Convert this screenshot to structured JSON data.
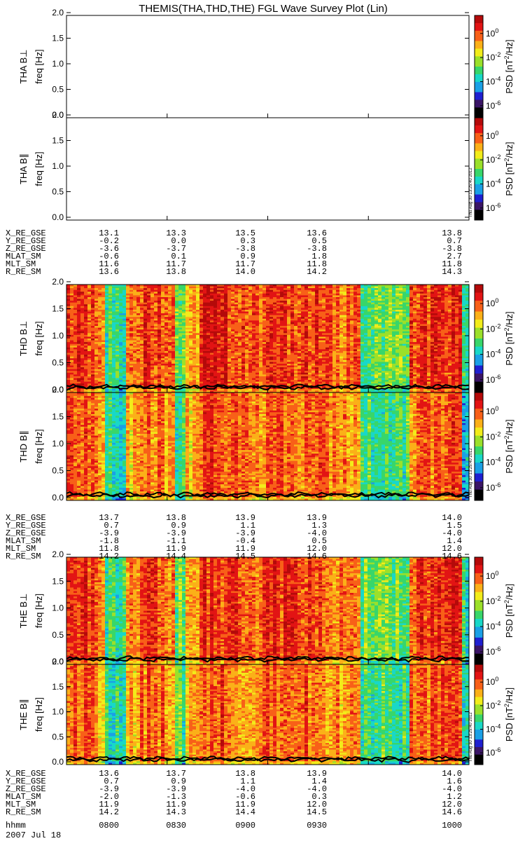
{
  "colors": {
    "background": "#ffffff",
    "axis": "#000000",
    "colormap": [
      "#000000",
      "#3a1466",
      "#1f1fd0",
      "#1aa0e6",
      "#18d8c8",
      "#38d66a",
      "#9be02a",
      "#f2ec1a",
      "#fbb018",
      "#f86018",
      "#e21414",
      "#b40a0a"
    ],
    "overlay_line": "#000000"
  },
  "stamp": "Thu Aug 30 13:25:40 2012",
  "chart_data": {
    "type": "heatmap",
    "title": "THEMIS(THA,THD,THE) FGL Wave Survey Plot (Lin)",
    "panels": [
      {
        "probe": "THA",
        "component": "B⊥",
        "ylabel": "THA B⊥",
        "ylabel2": "freq [Hz]",
        "ylim": [
          0,
          2.0
        ],
        "has_data": false
      },
      {
        "probe": "THA",
        "component": "B∥",
        "ylabel": "THA B∥",
        "ylabel2": "freq [Hz]",
        "ylim": [
          0,
          2.0
        ],
        "has_data": false
      },
      {
        "probe": "THD",
        "component": "B⊥",
        "ylabel": "THD B⊥",
        "ylabel2": "freq [Hz]",
        "ylim": [
          0,
          2.0
        ],
        "has_data": true
      },
      {
        "probe": "THD",
        "component": "B∥",
        "ylabel": "THD B∥",
        "ylabel2": "freq [Hz]",
        "ylim": [
          0,
          2.0
        ],
        "has_data": true
      },
      {
        "probe": "THE",
        "component": "B⊥",
        "ylabel": "THE B⊥",
        "ylabel2": "freq [Hz]",
        "ylim": [
          0,
          2.0
        ],
        "has_data": true
      },
      {
        "probe": "THE",
        "component": "B∥",
        "ylabel": "THE B∥",
        "ylabel2": "freq [Hz]",
        "ylim": [
          0,
          2.0
        ],
        "has_data": true
      }
    ],
    "yticks": [
      "0.0",
      "0.5",
      "1.0",
      "1.5",
      "2.0"
    ],
    "colorbar": {
      "label": "PSD [nT²/Hz]",
      "label_main": "PSD [nT",
      "label_sup": "2",
      "label_tail": "/Hz]",
      "range_log10": [
        -7,
        1.5
      ],
      "ticks": [
        {
          "base": "10",
          "exp": "0",
          "log": 0
        },
        {
          "base": "10",
          "exp": "-2",
          "log": -2
        },
        {
          "base": "10",
          "exp": "-4",
          "log": -4
        },
        {
          "base": "10",
          "exp": "-6",
          "log": -6
        }
      ]
    },
    "time": {
      "hhmm": [
        "0800",
        "0830",
        "0900",
        "0930",
        "1000"
      ],
      "date": "2007 Jul 18",
      "axis_label": "hhmm"
    },
    "ephemeris_labels": [
      "X_RE_GSE",
      "Y_RE_GSE",
      "Z_RE_GSE",
      "MLAT_SM",
      "MLT_SM",
      "R_RE_SM"
    ],
    "ephemeris": [
      {
        "probe": "THA",
        "rows": [
          [
            "13.1",
            "13.3",
            "13.5",
            "13.6",
            "13.8"
          ],
          [
            "-0.2",
            "0.0",
            "0.3",
            "0.5",
            "0.7"
          ],
          [
            "-3.6",
            "-3.7",
            "-3.8",
            "-3.8",
            "-3.8"
          ],
          [
            "-0.6",
            "0.1",
            "0.9",
            "1.8",
            "2.7"
          ],
          [
            "11.6",
            "11.7",
            "11.7",
            "11.8",
            "11.8"
          ],
          [
            "13.6",
            "13.8",
            "14.0",
            "14.2",
            "14.3"
          ]
        ]
      },
      {
        "probe": "THD",
        "rows": [
          [
            "13.7",
            "13.8",
            "13.9",
            "13.9",
            "14.0"
          ],
          [
            "0.7",
            "0.9",
            "1.1",
            "1.3",
            "1.5"
          ],
          [
            "-3.9",
            "-3.9",
            "-3.9",
            "-4.0",
            "-4.0"
          ],
          [
            "-1.8",
            "-1.1",
            "-0.4",
            "0.5",
            "1.4"
          ],
          [
            "11.8",
            "11.9",
            "11.9",
            "12.0",
            "12.0"
          ],
          [
            "14.2",
            "14.4",
            "14.5",
            "14.6",
            "14.6"
          ]
        ]
      },
      {
        "probe": "THE",
        "rows": [
          [
            "13.6",
            "13.7",
            "13.8",
            "13.9",
            "14.0"
          ],
          [
            "0.7",
            "0.9",
            "1.1",
            "1.4",
            "1.6"
          ],
          [
            "-3.9",
            "-3.9",
            "-4.0",
            "-4.0",
            "-4.0"
          ],
          [
            "-2.0",
            "-1.3",
            "-0.6",
            "0.3",
            "1.2"
          ],
          [
            "11.9",
            "11.9",
            "11.9",
            "12.0",
            "12.0"
          ],
          [
            "14.2",
            "14.3",
            "14.4",
            "14.5",
            "14.6"
          ]
        ]
      }
    ],
    "spectral_profile": {
      "description": "Approximate dominant PSD (log10 nT^2/Hz) vs normalized time for THD/THE; low values = green/cyan bands",
      "segments": [
        {
          "t": [
            0.0,
            0.08
          ],
          "level": 0.2
        },
        {
          "t": [
            0.08,
            0.095
          ],
          "level": -1.0
        },
        {
          "t": [
            0.095,
            0.15
          ],
          "level": -3.2
        },
        {
          "t": [
            0.15,
            0.18
          ],
          "level": -0.7
        },
        {
          "t": [
            0.18,
            0.24
          ],
          "level": 0.0
        },
        {
          "t": [
            0.24,
            0.27
          ],
          "level": -0.4
        },
        {
          "t": [
            0.27,
            0.3
          ],
          "level": -2.6
        },
        {
          "t": [
            0.3,
            0.33
          ],
          "level": -0.8
        },
        {
          "t": [
            0.33,
            0.43
          ],
          "level": 0.3
        },
        {
          "t": [
            0.43,
            0.5
          ],
          "level": -0.2
        },
        {
          "t": [
            0.5,
            0.64
          ],
          "level": 0.2
        },
        {
          "t": [
            0.64,
            0.73
          ],
          "level": -0.4
        },
        {
          "t": [
            0.73,
            0.85
          ],
          "level": -2.8
        },
        {
          "t": [
            0.85,
            0.92
          ],
          "level": 0.1
        },
        {
          "t": [
            0.92,
            0.98
          ],
          "level": 0.3
        },
        {
          "t": [
            0.98,
            1.0
          ],
          "level": -3.5
        }
      ]
    }
  }
}
